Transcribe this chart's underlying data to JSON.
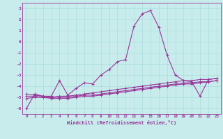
{
  "xlabel": "Windchill (Refroidissement éolien,°C)",
  "ylabel": "",
  "x": [
    0,
    1,
    2,
    3,
    4,
    5,
    6,
    7,
    8,
    9,
    10,
    11,
    12,
    13,
    14,
    15,
    16,
    17,
    18,
    19,
    20,
    21,
    22,
    23
  ],
  "line1": [
    -6.0,
    -4.7,
    -4.9,
    -4.9,
    -3.5,
    -4.8,
    -4.2,
    -3.7,
    -3.8,
    -3.0,
    -2.5,
    -1.8,
    -1.6,
    1.4,
    2.5,
    2.8,
    1.3,
    -1.2,
    -3.0,
    -3.5,
    -3.6,
    -4.9,
    -3.4,
    -3.3
  ],
  "line2": [
    -4.7,
    -4.8,
    -4.9,
    -5.0,
    -4.9,
    -4.9,
    -4.8,
    -4.7,
    -4.6,
    -4.5,
    -4.4,
    -4.3,
    -4.2,
    -4.1,
    -4.0,
    -3.9,
    -3.8,
    -3.7,
    -3.6,
    -3.5,
    -3.5,
    -3.4,
    -3.4,
    -3.3
  ],
  "line3": [
    -4.9,
    -4.9,
    -5.0,
    -5.0,
    -5.0,
    -5.0,
    -4.9,
    -4.8,
    -4.8,
    -4.7,
    -4.6,
    -4.5,
    -4.4,
    -4.3,
    -4.2,
    -4.1,
    -4.0,
    -3.9,
    -3.8,
    -3.7,
    -3.7,
    -3.6,
    -3.6,
    -3.5
  ],
  "line4": [
    -5.1,
    -5.0,
    -5.0,
    -5.1,
    -5.1,
    -5.1,
    -5.0,
    -4.9,
    -4.9,
    -4.8,
    -4.7,
    -4.6,
    -4.5,
    -4.4,
    -4.3,
    -4.2,
    -4.1,
    -4.0,
    -3.9,
    -3.8,
    -3.8,
    -3.7,
    -3.6,
    -3.5
  ],
  "bg_color": "#c8ecec",
  "line_color": "#993399",
  "grid_color": "#aadddd",
  "ylim": [
    -6.5,
    3.5
  ],
  "yticks": [
    -6,
    -5,
    -4,
    -3,
    -2,
    -1,
    0,
    1,
    2,
    3
  ],
  "xticks": [
    0,
    1,
    2,
    3,
    4,
    5,
    6,
    7,
    8,
    9,
    10,
    11,
    12,
    13,
    14,
    15,
    16,
    17,
    18,
    19,
    20,
    21,
    22,
    23
  ]
}
